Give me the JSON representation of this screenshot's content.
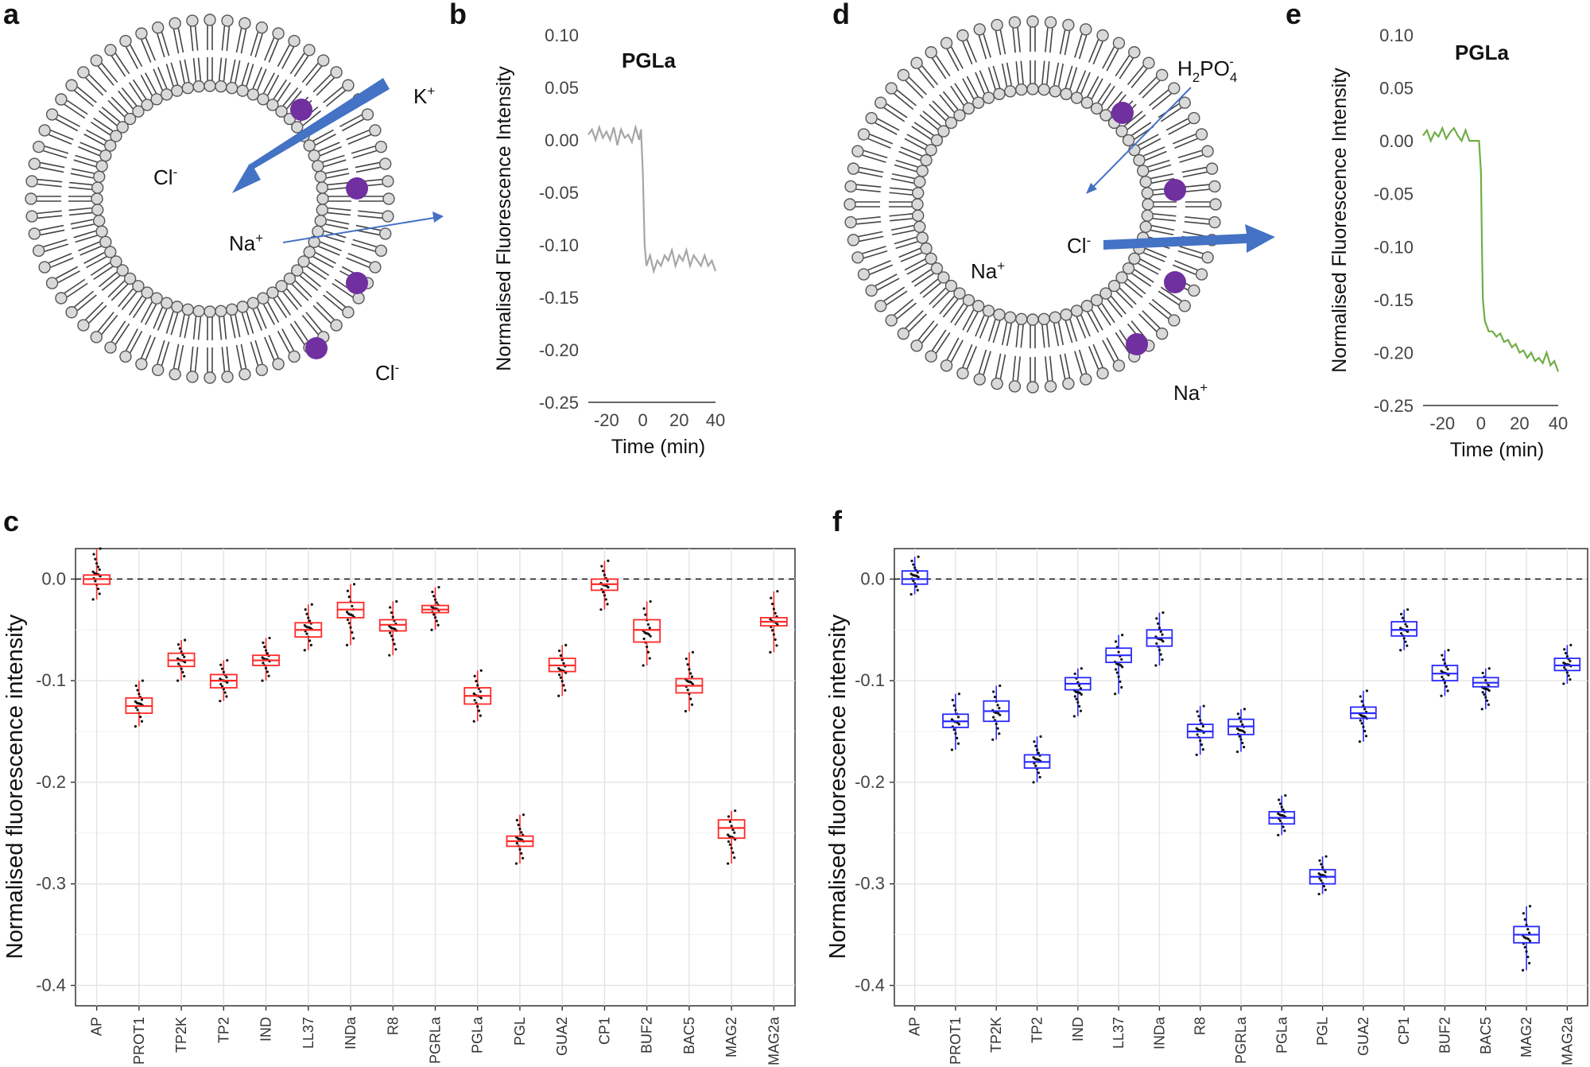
{
  "panel_letters": {
    "a": "a",
    "b": "b",
    "c": "c",
    "d": "d",
    "e": "e",
    "f": "f"
  },
  "diagram_a": {
    "labels": {
      "k": "K",
      "k_sup": "+",
      "cl_in": "Cl",
      "cl_in_sup": "-",
      "na": "Na",
      "na_sup": "+",
      "cl_out": "Cl",
      "cl_out_sup": "-"
    },
    "arrow_color": "#4472c4",
    "peptide_color": "#7030a0"
  },
  "diagram_d": {
    "labels": {
      "h2": "H",
      "h2_sub": "2",
      "po": "PO",
      "po_sub": "4",
      "po_sup": "-",
      "cl": "Cl",
      "cl_sup": "-",
      "na_in": "Na",
      "na_in_sup": "+",
      "na_out": "Na",
      "na_out_sup": "+"
    },
    "arrow_color": "#4472c4",
    "peptide_color": "#7030a0"
  },
  "chart_data": [
    {
      "id": "b",
      "type": "line",
      "title": "PGLa",
      "xlabel": "Time (min)",
      "ylabel": "Normalised  Fluorescence  Intensity",
      "xlim": [
        -30,
        40
      ],
      "ylim": [
        -0.25,
        0.1
      ],
      "xticks": [
        -20,
        0,
        20,
        40
      ],
      "yticks": [
        "0.10",
        "0.05",
        "0.00",
        "-0.05",
        "-0.10",
        "-0.15",
        "-0.20",
        "-0.25"
      ],
      "color": "#a6a6a6",
      "x": [
        -30,
        -28,
        -26,
        -24,
        -22,
        -20,
        -18,
        -16,
        -14,
        -12,
        -10,
        -8,
        -6,
        -4,
        -2,
        -1,
        0,
        1,
        2,
        4,
        6,
        8,
        10,
        12,
        14,
        16,
        18,
        20,
        22,
        24,
        26,
        28,
        30,
        32,
        34,
        36,
        38,
        40
      ],
      "y": [
        0.005,
        0.01,
        0.0,
        0.012,
        0.002,
        0.008,
        0.0,
        0.012,
        -0.005,
        0.01,
        0.002,
        0.005,
        -0.002,
        0.012,
        0.0,
        0.01,
        -0.03,
        -0.1,
        -0.12,
        -0.11,
        -0.125,
        -0.115,
        -0.12,
        -0.11,
        -0.115,
        -0.105,
        -0.12,
        -0.11,
        -0.115,
        -0.105,
        -0.12,
        -0.11,
        -0.115,
        -0.12,
        -0.11,
        -0.12,
        -0.115,
        -0.125
      ]
    },
    {
      "id": "e",
      "type": "line",
      "title": "PGLa",
      "xlabel": "Time (min)",
      "ylabel": "Normalised Fluorescence Intensity",
      "xlim": [
        -30,
        40
      ],
      "ylim": [
        -0.25,
        0.1
      ],
      "xticks": [
        -20,
        0,
        20,
        40
      ],
      "yticks": [
        "0.10",
        "0.05",
        "0.00",
        "-0.05",
        "-0.10",
        "-0.15",
        "-0.20",
        "-0.25"
      ],
      "color": "#70ad47",
      "x": [
        -30,
        -28,
        -26,
        -24,
        -22,
        -20,
        -18,
        -16,
        -14,
        -12,
        -10,
        -8,
        -6,
        -4,
        -2,
        -1,
        0,
        0.5,
        1,
        2,
        3,
        4,
        6,
        8,
        10,
        12,
        14,
        16,
        18,
        20,
        22,
        24,
        26,
        28,
        30,
        32,
        34,
        36,
        38,
        40
      ],
      "y": [
        0.005,
        0.01,
        0.0,
        0.008,
        0.004,
        0.012,
        0.002,
        0.008,
        0.012,
        0.005,
        0.0,
        0.01,
        0.0,
        0.0,
        0.0,
        0.0,
        -0.03,
        -0.1,
        -0.15,
        -0.17,
        -0.175,
        -0.18,
        -0.18,
        -0.185,
        -0.182,
        -0.19,
        -0.188,
        -0.195,
        -0.192,
        -0.2,
        -0.198,
        -0.205,
        -0.2,
        -0.208,
        -0.205,
        -0.21,
        -0.2,
        -0.212,
        -0.208,
        -0.218
      ]
    },
    {
      "id": "c",
      "type": "box",
      "ylabel": "Normalised fluorescence intensity",
      "ylim": [
        -0.42,
        0.03
      ],
      "yticks": [
        "0.0",
        "-0.1",
        "-0.2",
        "-0.3",
        "-0.4"
      ],
      "ytick_values": [
        0.0,
        -0.1,
        -0.2,
        -0.3,
        -0.4
      ],
      "reference_line": 0.0,
      "color": "#ff2a2a",
      "categories": [
        "AP",
        "PROT1",
        "TP2K",
        "TP2",
        "IND",
        "LL37",
        "INDa",
        "R8",
        "PGRLa",
        "PGLa",
        "PGL",
        "GUA2",
        "CP1",
        "BUF2",
        "BAC5",
        "MAG2",
        "MAG2a"
      ],
      "medians": [
        0.0,
        -0.125,
        -0.08,
        -0.1,
        -0.08,
        -0.05,
        -0.03,
        -0.045,
        -0.03,
        -0.115,
        -0.258,
        -0.085,
        -0.005,
        -0.05,
        -0.105,
        -0.245,
        -0.042
      ],
      "q1": [
        -0.005,
        -0.132,
        -0.086,
        -0.107,
        -0.085,
        -0.057,
        -0.038,
        -0.051,
        -0.033,
        -0.123,
        -0.263,
        -0.091,
        -0.011,
        -0.062,
        -0.112,
        -0.255,
        -0.046
      ],
      "q3": [
        0.004,
        -0.117,
        -0.073,
        -0.094,
        -0.075,
        -0.043,
        -0.023,
        -0.04,
        -0.026,
        -0.107,
        -0.253,
        -0.078,
        0.0,
        -0.04,
        -0.098,
        -0.237,
        -0.038
      ],
      "whisker_low": [
        -0.02,
        -0.145,
        -0.1,
        -0.12,
        -0.1,
        -0.07,
        -0.065,
        -0.075,
        -0.05,
        -0.14,
        -0.28,
        -0.115,
        -0.03,
        -0.085,
        -0.13,
        -0.28,
        -0.072
      ],
      "whisker_high": [
        0.03,
        -0.1,
        -0.06,
        -0.08,
        -0.058,
        -0.025,
        -0.005,
        -0.022,
        -0.008,
        -0.09,
        -0.232,
        -0.065,
        0.018,
        -0.022,
        -0.072,
        -0.228,
        -0.012
      ]
    },
    {
      "id": "f",
      "type": "box",
      "ylabel": "Normalised fluorescence intensity",
      "ylim": [
        -0.42,
        0.03
      ],
      "yticks": [
        "0.0",
        "-0.1",
        "-0.2",
        "-0.3",
        "-0.4"
      ],
      "ytick_values": [
        0.0,
        -0.1,
        -0.2,
        -0.3,
        -0.4
      ],
      "reference_line": 0.0,
      "color": "#2a2aff",
      "categories": [
        "AP",
        "PROT1",
        "TP2K",
        "TP2",
        "IND",
        "LL37",
        "INDa",
        "R8",
        "PGRLa",
        "PGLa",
        "PGL",
        "GUA2",
        "CP1",
        "BUF2",
        "BAC5",
        "MAG2",
        "MAG2a"
      ],
      "medians": [
        0.0,
        -0.14,
        -0.13,
        -0.18,
        -0.103,
        -0.075,
        -0.058,
        -0.15,
        -0.145,
        -0.235,
        -0.293,
        -0.132,
        -0.05,
        -0.093,
        -0.102,
        -0.35,
        -0.085
      ],
      "q1": [
        -0.005,
        -0.146,
        -0.14,
        -0.186,
        -0.109,
        -0.082,
        -0.066,
        -0.156,
        -0.153,
        -0.241,
        -0.3,
        -0.137,
        -0.056,
        -0.1,
        -0.106,
        -0.358,
        -0.09
      ],
      "q3": [
        0.008,
        -0.133,
        -0.12,
        -0.173,
        -0.097,
        -0.068,
        -0.05,
        -0.143,
        -0.138,
        -0.229,
        -0.286,
        -0.126,
        -0.042,
        -0.085,
        -0.097,
        -0.342,
        -0.078
      ],
      "whisker_low": [
        -0.015,
        -0.168,
        -0.158,
        -0.2,
        -0.135,
        -0.113,
        -0.085,
        -0.173,
        -0.17,
        -0.252,
        -0.31,
        -0.16,
        -0.07,
        -0.115,
        -0.128,
        -0.385,
        -0.103
      ],
      "whisker_high": [
        0.022,
        -0.113,
        -0.105,
        -0.155,
        -0.088,
        -0.055,
        -0.033,
        -0.125,
        -0.128,
        -0.213,
        -0.273,
        -0.11,
        -0.03,
        -0.07,
        -0.088,
        -0.322,
        -0.065
      ]
    }
  ]
}
